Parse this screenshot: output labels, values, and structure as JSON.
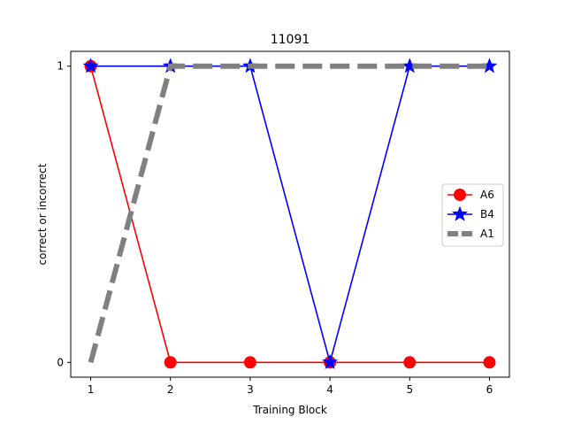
{
  "chart_data": {
    "type": "line",
    "title": "11091",
    "xlabel": "Training Block",
    "ylabel": "correct or incorrect",
    "x": [
      1,
      2,
      3,
      4,
      5,
      6
    ],
    "x_ticks": [
      "1",
      "2",
      "3",
      "4",
      "5",
      "6"
    ],
    "y_ticks": [
      "0",
      "1"
    ],
    "xlim": [
      0.75,
      6.25
    ],
    "ylim": [
      -0.05,
      1.05
    ],
    "grid": false,
    "legend_position": "center-right",
    "series": [
      {
        "name": "A6",
        "values": [
          1,
          0,
          0,
          0,
          0,
          0
        ],
        "color": "#ff0000",
        "marker": "circle",
        "line_style": "solid"
      },
      {
        "name": "B4",
        "values": [
          1,
          1,
          1,
          0,
          1,
          1
        ],
        "color": "#0000ff",
        "marker": "star",
        "line_style": "solid"
      },
      {
        "name": "A1",
        "values": [
          0,
          1,
          1,
          1,
          1,
          1
        ],
        "color": "#808080",
        "marker": "none",
        "line_style": "dashed"
      }
    ]
  }
}
